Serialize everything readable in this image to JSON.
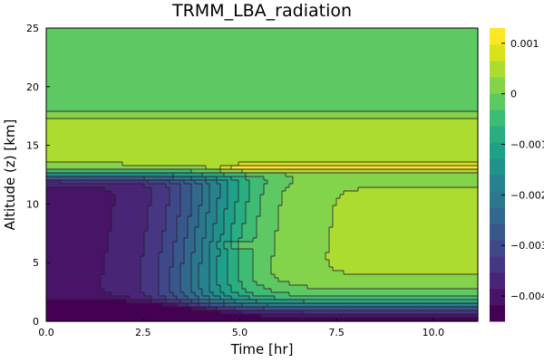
{
  "chart_data": {
    "type": "heatmap",
    "subtype": "filled-contour",
    "title": "TRMM_LBA_radiation",
    "xlabel": "Time [hr]",
    "ylabel": "Altitude (z) [km]",
    "xlim": [
      0,
      11.15
    ],
    "ylim": [
      0,
      25
    ],
    "x_ticks": [
      "0.0",
      "2.5",
      "5.0",
      "7.5",
      "10.0"
    ],
    "x_tick_values": [
      0,
      2.5,
      5,
      7.5,
      10
    ],
    "y_ticks": [
      "0",
      "5",
      "10",
      "15",
      "20",
      "25"
    ],
    "y_tick_values": [
      0,
      5,
      10,
      15,
      20,
      25
    ],
    "colormap": "viridis",
    "colors": [
      "#440154",
      "#481467",
      "#482576",
      "#453781",
      "#3f4889",
      "#38588c",
      "#31688e",
      "#2b788e",
      "#26828e",
      "#21918c",
      "#1fa088",
      "#28ae80",
      "#3fbc73",
      "#5ec962",
      "#84d44b",
      "#addc30",
      "#d8e219",
      "#fde725"
    ],
    "colorbar_ticks": [
      "−0.004",
      "−0.003",
      "−0.002",
      "−0.001",
      "0",
      "0.001"
    ],
    "colorbar_tick_values": [
      -0.004,
      -0.003,
      -0.002,
      -0.001,
      0,
      0.001
    ],
    "colorbar_range": [
      -0.0045,
      0.0013
    ],
    "features": [
      {
        "region": "upper atmosphere 17.5-25 km",
        "level": 0.0001
      },
      {
        "region": "anvil band 13-17 km",
        "level": 0.0005
      },
      {
        "region": "cirrus warming layer ~13 km after 4.5 hr",
        "level": 0.0012
      },
      {
        "region": "cooling core below 12 km early hours",
        "level": -0.0038
      },
      {
        "region": "mid-level pocket ~6.5 km at 5 hr",
        "level": 0.0009
      },
      {
        "region": "surface cooling near 0 km",
        "level": -0.0044
      }
    ]
  }
}
